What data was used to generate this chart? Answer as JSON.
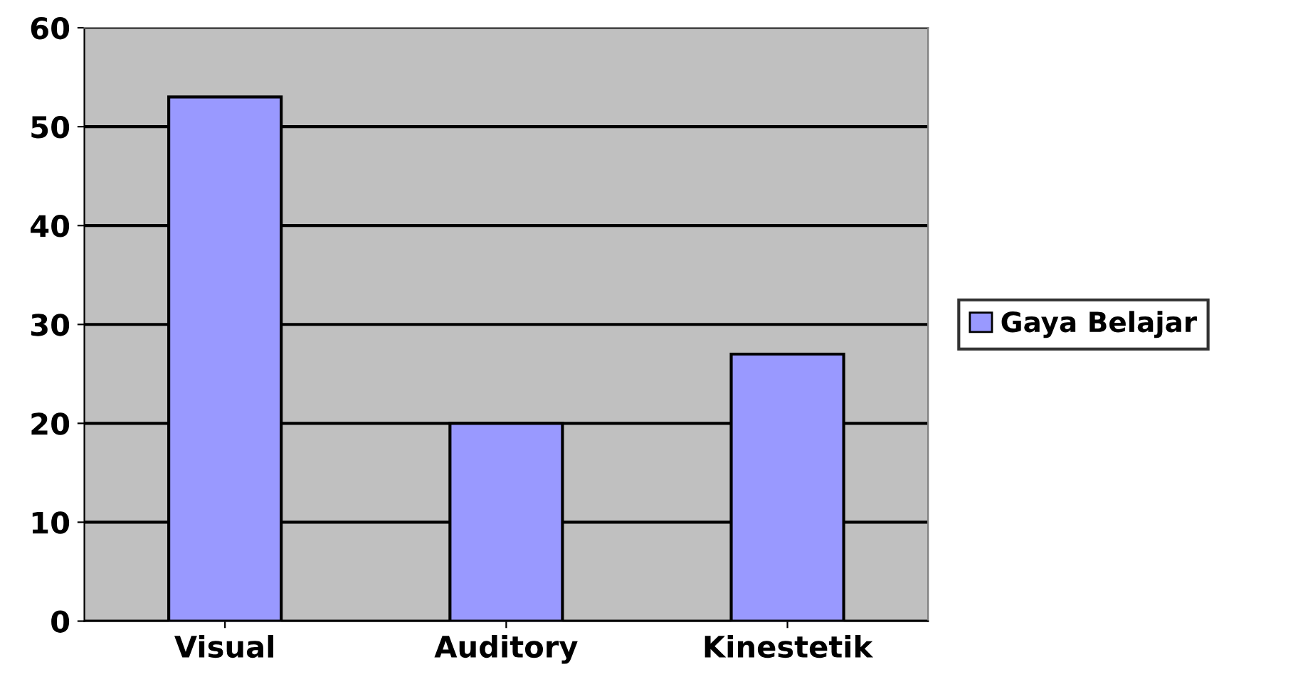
{
  "chart_data": {
    "type": "bar",
    "categories": [
      "Visual",
      "Auditory",
      "Kinestetik"
    ],
    "series": [
      {
        "name": "Gaya Belajar",
        "color": "#9999ff",
        "values": [
          53,
          20,
          27
        ]
      }
    ],
    "ylim": [
      0,
      60
    ],
    "yticks": [
      0,
      10,
      20,
      30,
      40,
      50,
      60
    ],
    "grid": "y",
    "legend": "right"
  }
}
